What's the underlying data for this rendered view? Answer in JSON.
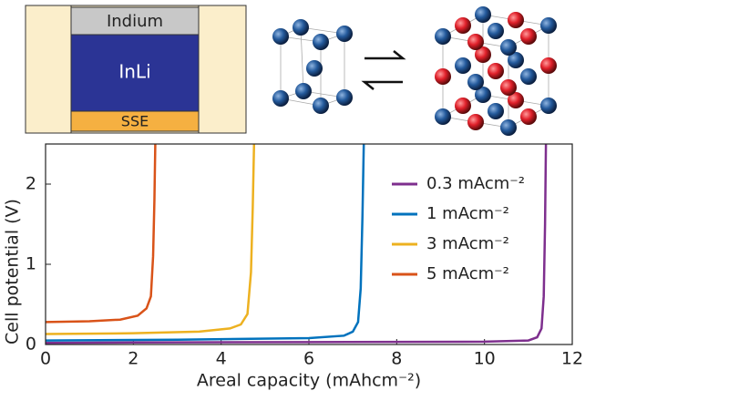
{
  "chart_data": {
    "type": "line",
    "annotations": [
      "Indium",
      "InLi",
      "SSE"
    ],
    "xlabel": "Areal capacity (mAhcm⁻²)",
    "ylabel": "Cell potential (V)",
    "xlim": [
      0,
      12
    ],
    "xticks": [
      0,
      2,
      4,
      6,
      8,
      10,
      12
    ],
    "ylim": [
      0,
      2.5
    ],
    "yticks": [
      0,
      1,
      2
    ],
    "legend": "upper right",
    "series": [
      {
        "name": "0.3 mAcm⁻²",
        "color": "#7e2f8e",
        "x": [
          0,
          2,
          6,
          10,
          11,
          11.2,
          11.3,
          11.35,
          11.38,
          11.4
        ],
        "values": [
          0.02,
          0.025,
          0.03,
          0.035,
          0.05,
          0.09,
          0.2,
          0.6,
          1.5,
          2.5
        ]
      },
      {
        "name": "1 mAcm⁻²",
        "color": "#0072bd",
        "x": [
          0,
          3,
          6,
          6.8,
          7.0,
          7.12,
          7.18,
          7.22,
          7.25
        ],
        "values": [
          0.05,
          0.06,
          0.08,
          0.11,
          0.16,
          0.28,
          0.7,
          1.6,
          2.5
        ]
      },
      {
        "name": "3 mAcm⁻²",
        "color": "#edb120",
        "x": [
          0,
          2,
          3.5,
          4.2,
          4.45,
          4.6,
          4.68,
          4.72,
          4.75
        ],
        "values": [
          0.13,
          0.14,
          0.16,
          0.2,
          0.25,
          0.38,
          0.9,
          1.7,
          2.5
        ]
      },
      {
        "name": "5 mAcm⁻²",
        "color": "#d95319",
        "x": [
          0,
          1,
          1.7,
          2.1,
          2.3,
          2.4,
          2.45,
          2.48,
          2.5
        ],
        "values": [
          0.28,
          0.29,
          0.31,
          0.36,
          0.45,
          0.6,
          1.1,
          1.8,
          2.5
        ]
      }
    ]
  }
}
